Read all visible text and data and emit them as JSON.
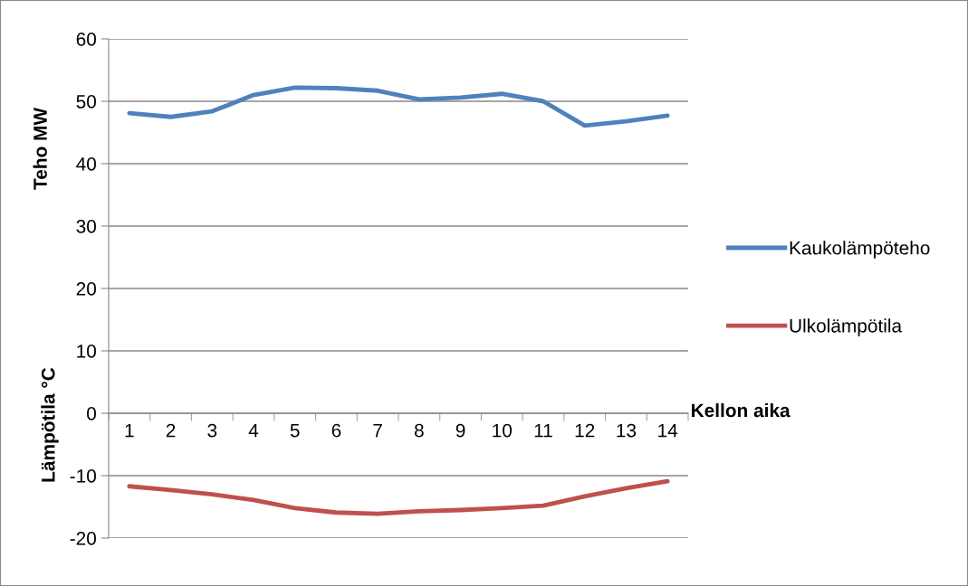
{
  "chart_data": {
    "type": "line",
    "categories": [
      "1",
      "2",
      "3",
      "4",
      "5",
      "6",
      "7",
      "8",
      "9",
      "10",
      "11",
      "12",
      "13",
      "14"
    ],
    "series": [
      {
        "name": "Kaukolämpöteho",
        "color": "#4f81bd",
        "values": [
          48.1,
          47.5,
          48.4,
          51.0,
          52.2,
          52.1,
          51.7,
          50.3,
          50.6,
          51.2,
          50.0,
          46.1,
          46.8,
          47.7
        ]
      },
      {
        "name": "Ulkolämpötila",
        "color": "#c0504d",
        "values": [
          -11.7,
          -12.3,
          -13.0,
          -13.9,
          -15.2,
          -15.9,
          -16.1,
          -15.7,
          -15.5,
          -15.2,
          -14.8,
          -13.3,
          -12.0,
          -10.9
        ]
      }
    ],
    "ylabel": "Teho MW",
    "xlabel": "Kellon aika",
    "annotations": [
      "Lämpötila °C"
    ],
    "ylim": [
      -20,
      60
    ],
    "yticks": [
      -20,
      -10,
      0,
      10,
      20,
      30,
      40,
      50,
      60
    ],
    "grid": "y",
    "legend": "right",
    "marker": "none",
    "line_style": "solid"
  }
}
